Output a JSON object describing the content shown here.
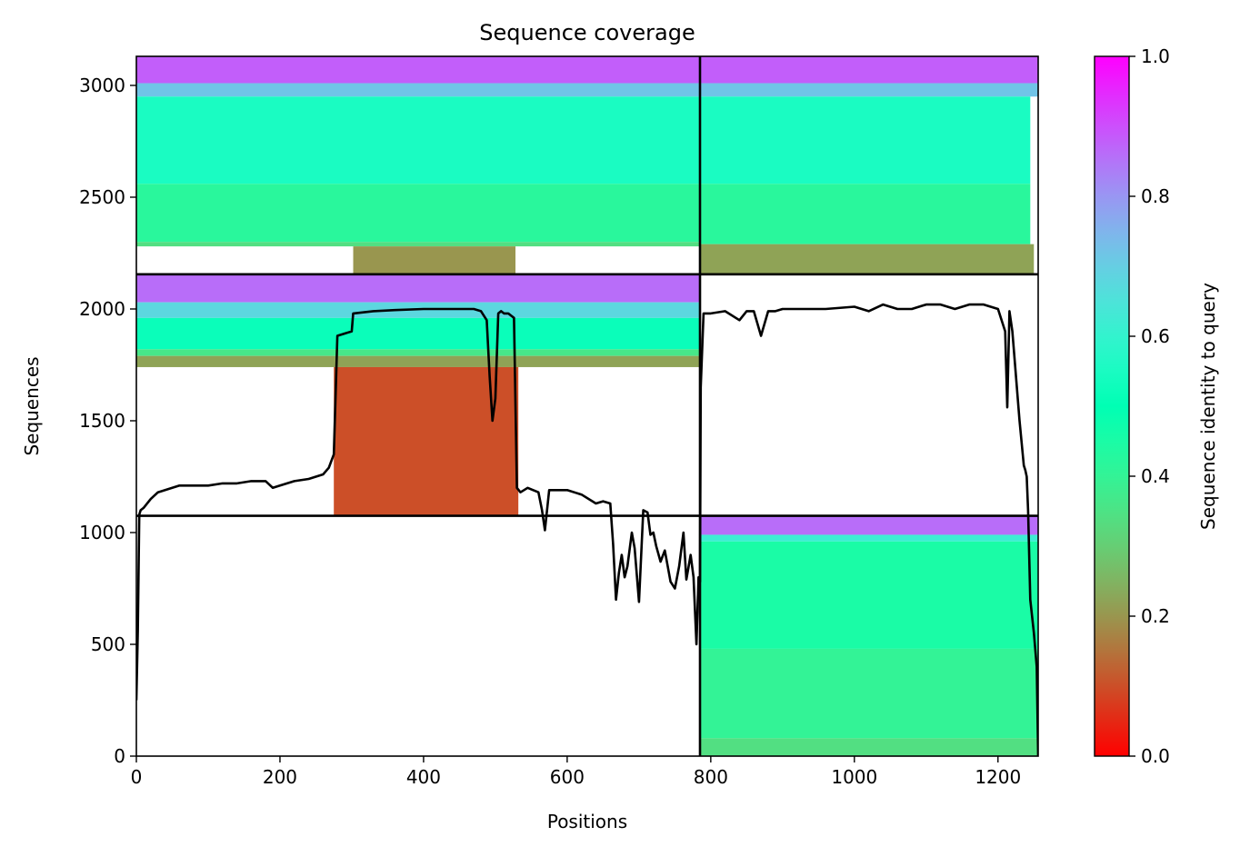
{
  "chart_data": {
    "type": "heatmap",
    "title": "Sequence coverage",
    "xlabel": "Positions",
    "ylabel": "Sequences",
    "xlim": [
      0,
      1256
    ],
    "ylim": [
      0,
      3130
    ],
    "x_ticks": [
      0,
      200,
      400,
      600,
      800,
      1000,
      1200
    ],
    "y_ticks": [
      0,
      500,
      1000,
      1500,
      2000,
      2500,
      3000
    ],
    "colorbar": {
      "label": "Sequence identity to query",
      "range": [
        0,
        1
      ],
      "ticks": [
        "0.0",
        "0.2",
        "0.4",
        "0.6",
        "0.8",
        "1.0"
      ],
      "colormap": "rainbow_r"
    },
    "chain_boundaries": {
      "positions": [
        785
      ],
      "sequences": [
        1075,
        2155
      ]
    },
    "blocks": [
      {
        "x": [
          0,
          785
        ],
        "y": [
          2155,
          3130
        ],
        "rows": [
          {
            "y": [
              3010,
              3130
            ],
            "x": [
              0,
              785
            ],
            "identity": 0.88
          },
          {
            "y": [
              2950,
              3010
            ],
            "x": [
              0,
              785
            ],
            "identity": 0.72
          },
          {
            "y": [
              2560,
              2950
            ],
            "x": [
              0,
              785
            ],
            "identity": 0.55
          },
          {
            "y": [
              2300,
              2560
            ],
            "x": [
              0,
              785
            ],
            "identity": 0.42
          },
          {
            "y": [
              2280,
              2300
            ],
            "x": [
              0,
              785
            ],
            "identity": 0.34
          },
          {
            "y": [
              2155,
              2280
            ],
            "x": [
              302,
              528
            ],
            "identity": 0.2
          }
        ]
      },
      {
        "x": [
          785,
          1256
        ],
        "y": [
          2155,
          3130
        ],
        "rows": [
          {
            "y": [
              3010,
              3130
            ],
            "x": [
              785,
              1256
            ],
            "identity": 0.88
          },
          {
            "y": [
              2950,
              3010
            ],
            "x": [
              785,
              1256
            ],
            "identity": 0.72
          },
          {
            "y": [
              2560,
              2950
            ],
            "x": [
              785,
              1245
            ],
            "identity": 0.55
          },
          {
            "y": [
              2290,
              2560
            ],
            "x": [
              785,
              1245
            ],
            "identity": 0.42
          },
          {
            "y": [
              2155,
              2290
            ],
            "x": [
              785,
              1250
            ],
            "identity": 0.22
          }
        ]
      },
      {
        "x": [
          0,
          785
        ],
        "y": [
          1075,
          2155
        ],
        "rows": [
          {
            "y": [
              2030,
              2155
            ],
            "x": [
              0,
              785
            ],
            "identity": 0.86
          },
          {
            "y": [
              1960,
              2030
            ],
            "x": [
              0,
              785
            ],
            "identity": 0.68
          },
          {
            "y": [
              1820,
              1960
            ],
            "x": [
              0,
              785
            ],
            "identity": 0.52
          },
          {
            "y": [
              1790,
              1820
            ],
            "x": [
              0,
              785
            ],
            "identity": 0.36
          },
          {
            "y": [
              1740,
              1790
            ],
            "x": [
              0,
              785
            ],
            "identity": 0.22
          },
          {
            "y": [
              1075,
              1740
            ],
            "x": [
              275,
              532
            ],
            "identity": 0.1
          }
        ]
      },
      {
        "x": [
          785,
          1256
        ],
        "y": [
          0,
          1075
        ],
        "rows": [
          {
            "y": [
              990,
              1075
            ],
            "x": [
              785,
              1256
            ],
            "identity": 0.86
          },
          {
            "y": [
              960,
              990
            ],
            "x": [
              785,
              1256
            ],
            "identity": 0.62
          },
          {
            "y": [
              480,
              960
            ],
            "x": [
              785,
              1256
            ],
            "identity": 0.45
          },
          {
            "y": [
              80,
              480
            ],
            "x": [
              785,
              1256
            ],
            "identity": 0.4
          },
          {
            "y": [
              0,
              80
            ],
            "x": [
              785,
              1256
            ],
            "identity": 0.34
          }
        ]
      }
    ],
    "coverage_line": {
      "x": [
        0,
        2,
        4,
        6,
        10,
        20,
        30,
        40,
        60,
        80,
        100,
        120,
        140,
        160,
        180,
        190,
        200,
        220,
        240,
        260,
        268,
        275,
        280,
        300,
        302,
        330,
        360,
        400,
        440,
        470,
        480,
        488,
        492,
        496,
        500,
        504,
        508,
        512,
        518,
        526,
        530,
        535,
        545,
        560,
        565,
        569,
        575,
        600,
        620,
        640,
        650,
        660,
        664,
        668,
        672,
        676,
        680,
        684,
        690,
        694,
        700,
        706,
        712,
        716,
        720,
        724,
        730,
        736,
        744,
        750,
        756,
        762,
        766,
        772,
        776,
        780,
        783,
        785,
        786,
        790,
        800,
        820,
        840,
        850,
        860,
        870,
        880,
        890,
        900,
        920,
        960,
        1000,
        1020,
        1040,
        1060,
        1080,
        1100,
        1120,
        1140,
        1160,
        1180,
        1200,
        1210,
        1213,
        1216,
        1220,
        1230,
        1236,
        1238,
        1240,
        1242,
        1245,
        1250,
        1254,
        1256
      ],
      "y": [
        250,
        560,
        1080,
        1100,
        1110,
        1150,
        1180,
        1190,
        1210,
        1210,
        1210,
        1220,
        1220,
        1230,
        1230,
        1200,
        1210,
        1230,
        1240,
        1260,
        1290,
        1350,
        1880,
        1900,
        1980,
        1990,
        1995,
        2000,
        2000,
        2000,
        1990,
        1950,
        1700,
        1500,
        1600,
        1980,
        1990,
        1980,
        1980,
        1960,
        1200,
        1180,
        1200,
        1180,
        1100,
        1010,
        1190,
        1190,
        1170,
        1130,
        1140,
        1130,
        950,
        700,
        820,
        900,
        800,
        850,
        1000,
        930,
        690,
        1100,
        1090,
        990,
        1000,
        940,
        870,
        920,
        780,
        750,
        850,
        1000,
        790,
        900,
        800,
        500,
        800,
        780,
        1650,
        1980,
        1980,
        1990,
        1950,
        1990,
        1990,
        1880,
        1990,
        1990,
        2000,
        2000,
        2000,
        2010,
        1990,
        2020,
        2000,
        2000,
        2020,
        2020,
        2000,
        2020,
        2020,
        2000,
        1900,
        1560,
        1990,
        1900,
        1500,
        1300,
        1280,
        1250,
        1100,
        700,
        550,
        400,
        0
      ]
    }
  }
}
